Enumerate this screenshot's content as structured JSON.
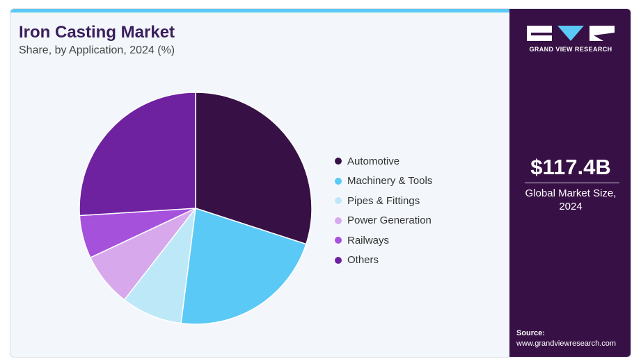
{
  "header": {
    "title": "Iron Casting Market",
    "subtitle": "Share, by Application, 2024 (%)"
  },
  "chart_data": {
    "type": "pie",
    "title": "Iron Casting Market",
    "subtitle": "Share, by Application, 2024 (%)",
    "categories": [
      "Automotive",
      "Machinery & Tools",
      "Pipes & Fittings",
      "Power Generation",
      "Railways",
      "Others"
    ],
    "values": [
      30,
      22,
      8.5,
      7.5,
      6,
      26
    ],
    "colors": [
      "#371045",
      "#5bc9f5",
      "#bde8f8",
      "#d7a9ec",
      "#a651dc",
      "#6f22a0"
    ],
    "legend_position": "right"
  },
  "sidebar": {
    "brand": "GRAND VIEW RESEARCH",
    "market_size": "$117.4B",
    "market_size_label_line1": "Global Market Size,",
    "market_size_label_line2": "2024",
    "source_label": "Source:",
    "source_url": "www.grandviewresearch.com"
  }
}
